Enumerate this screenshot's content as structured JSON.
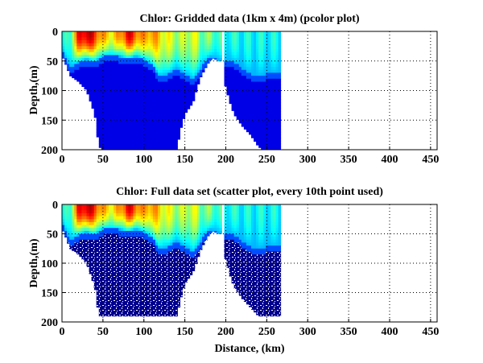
{
  "chart_data": [
    {
      "type": "heatmap",
      "title": "Chlor: Gridded data (1km x 4m) (pcolor plot)",
      "xlabel": "",
      "ylabel": "Depth,(m)",
      "xlim": [
        0,
        458
      ],
      "ylim": [
        200,
        0
      ],
      "xticks": [
        0,
        50,
        100,
        150,
        200,
        250,
        300,
        350,
        400,
        450
      ],
      "yticks": [
        0,
        50,
        100,
        150,
        200
      ],
      "grid": true,
      "colormap": "jet",
      "style": "pcolor",
      "profile_x_km": [
        0,
        10,
        20,
        30,
        40,
        45,
        50,
        60,
        70,
        80,
        90,
        100,
        110,
        120,
        130,
        140,
        145,
        150,
        160,
        165,
        170,
        180,
        185,
        190,
        194,
        197,
        200,
        205,
        210,
        220,
        230,
        240,
        245,
        250,
        260,
        265
      ],
      "bottom_depth_m": [
        40,
        75,
        85,
        100,
        140,
        195,
        200,
        200,
        200,
        200,
        200,
        200,
        200,
        200,
        200,
        200,
        165,
        140,
        120,
        95,
        75,
        50,
        45,
        50,
        50,
        80,
        95,
        120,
        140,
        160,
        175,
        195,
        200,
        200,
        200,
        200
      ],
      "mixed_layer_x_km": [
        0,
        10,
        20,
        30,
        40,
        50,
        60,
        70,
        80,
        90,
        100,
        110,
        120,
        130,
        140,
        150,
        160,
        170,
        180,
        190,
        200,
        210,
        220,
        230,
        240,
        250,
        260,
        265
      ],
      "mixed_layer_depth_m": [
        30,
        60,
        50,
        45,
        50,
        40,
        40,
        40,
        45,
        40,
        45,
        55,
        75,
        70,
        60,
        70,
        80,
        60,
        40,
        45,
        50,
        50,
        60,
        70,
        75,
        70,
        70,
        70
      ],
      "surface_chl_index": [
        0.35,
        0.45,
        0.85,
        0.95,
        0.85,
        0.7,
        0.65,
        0.7,
        0.9,
        0.8,
        0.7,
        0.75,
        0.65,
        0.6,
        0.55,
        0.55,
        0.6,
        0.5,
        0.5,
        0.45,
        0.4,
        0.4,
        0.38,
        0.38,
        0.38,
        0.38,
        0.38,
        0.38
      ]
    },
    {
      "type": "scatter",
      "title": "Chlor: Full data set (scatter plot, every 10th point used)",
      "xlabel": "Distance, (km)",
      "ylabel": "Depth,(m)",
      "xlim": [
        0,
        458
      ],
      "ylim": [
        200,
        0
      ],
      "xticks": [
        0,
        50,
        100,
        150,
        200,
        250,
        300,
        350,
        400,
        450
      ],
      "yticks": [
        0,
        50,
        100,
        150,
        200
      ],
      "grid": true,
      "colormap": "jet",
      "style": "scatter",
      "profile_x_km": [
        0,
        10,
        20,
        30,
        40,
        45,
        50,
        60,
        70,
        80,
        90,
        100,
        110,
        120,
        130,
        140,
        145,
        150,
        160,
        165,
        170,
        180,
        185,
        190,
        194,
        197,
        200,
        205,
        210,
        220,
        230,
        240,
        245,
        250,
        260,
        265
      ],
      "bottom_depth_m": [
        40,
        75,
        85,
        100,
        140,
        190,
        190,
        190,
        190,
        190,
        190,
        190,
        190,
        190,
        190,
        190,
        160,
        135,
        115,
        95,
        75,
        50,
        45,
        50,
        50,
        80,
        95,
        120,
        140,
        160,
        175,
        190,
        190,
        190,
        190,
        190
      ],
      "mixed_layer_x_km": [
        0,
        10,
        20,
        30,
        40,
        50,
        60,
        70,
        80,
        90,
        100,
        110,
        120,
        130,
        140,
        150,
        160,
        170,
        180,
        190,
        200,
        210,
        220,
        230,
        240,
        250,
        260,
        265
      ],
      "mixed_layer_depth_m": [
        30,
        60,
        50,
        45,
        50,
        40,
        40,
        40,
        45,
        40,
        45,
        55,
        75,
        70,
        60,
        70,
        80,
        60,
        40,
        45,
        50,
        50,
        60,
        70,
        75,
        70,
        70,
        70
      ],
      "surface_chl_index": [
        0.35,
        0.45,
        0.85,
        0.95,
        0.85,
        0.7,
        0.65,
        0.7,
        0.9,
        0.8,
        0.7,
        0.75,
        0.65,
        0.6,
        0.55,
        0.55,
        0.6,
        0.5,
        0.5,
        0.45,
        0.4,
        0.4,
        0.38,
        0.38,
        0.38,
        0.38,
        0.38,
        0.38
      ]
    }
  ]
}
